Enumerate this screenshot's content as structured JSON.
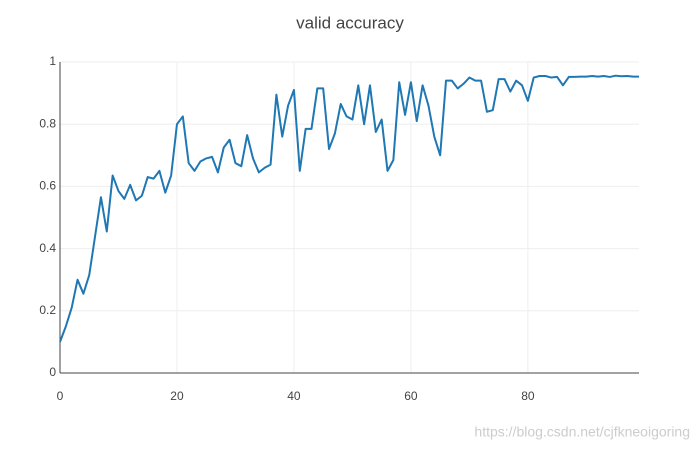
{
  "chart_data": {
    "type": "line",
    "title": "valid accuracy",
    "x": [
      0,
      1,
      2,
      3,
      4,
      5,
      6,
      7,
      8,
      9,
      10,
      11,
      12,
      13,
      14,
      15,
      16,
      17,
      18,
      19,
      20,
      21,
      22,
      23,
      24,
      25,
      26,
      27,
      28,
      29,
      30,
      31,
      32,
      33,
      34,
      35,
      36,
      37,
      38,
      39,
      40,
      41,
      42,
      43,
      44,
      45,
      46,
      47,
      48,
      49,
      50,
      51,
      52,
      53,
      54,
      55,
      56,
      57,
      58,
      59,
      60,
      61,
      62,
      63,
      64,
      65,
      66,
      67,
      68,
      69,
      70,
      71,
      72,
      73,
      74,
      75,
      76,
      77,
      78,
      79,
      80,
      81,
      82,
      83,
      84,
      85,
      86,
      87,
      88,
      89,
      90,
      91,
      92,
      93,
      94,
      95,
      96,
      97,
      98,
      99
    ],
    "series": [
      {
        "color": "#1f77b4",
        "values": [
          0.1,
          0.15,
          0.21,
          0.3,
          0.255,
          0.315,
          0.44,
          0.565,
          0.455,
          0.635,
          0.585,
          0.56,
          0.605,
          0.555,
          0.57,
          0.63,
          0.625,
          0.65,
          0.58,
          0.635,
          0.8,
          0.825,
          0.675,
          0.65,
          0.68,
          0.69,
          0.695,
          0.645,
          0.725,
          0.75,
          0.675,
          0.665,
          0.765,
          0.69,
          0.645,
          0.66,
          0.67,
          0.895,
          0.76,
          0.86,
          0.91,
          0.65,
          0.785,
          0.785,
          0.915,
          0.915,
          0.72,
          0.77,
          0.865,
          0.825,
          0.815,
          0.925,
          0.8,
          0.925,
          0.775,
          0.815,
          0.65,
          0.685,
          0.935,
          0.83,
          0.935,
          0.81,
          0.925,
          0.86,
          0.76,
          0.7,
          0.94,
          0.94,
          0.915,
          0.93,
          0.95,
          0.94,
          0.94,
          0.84,
          0.845,
          0.945,
          0.945,
          0.905,
          0.94,
          0.925,
          0.875,
          0.95,
          0.955,
          0.955,
          0.95,
          0.952,
          0.925,
          0.952,
          0.952,
          0.953,
          0.953,
          0.955,
          0.953,
          0.955,
          0.952,
          0.956,
          0.954,
          0.955,
          0.953,
          0.953
        ]
      }
    ],
    "xlim": [
      0,
      99
    ],
    "xticks": [
      0,
      20,
      40,
      60,
      80
    ],
    "ylim": [
      0,
      1
    ],
    "yticks": [
      0,
      0.2,
      0.4,
      0.6,
      0.8,
      1
    ],
    "grid": true,
    "watermark": "https://blog.csdn.net/cjfkneoigoring"
  }
}
